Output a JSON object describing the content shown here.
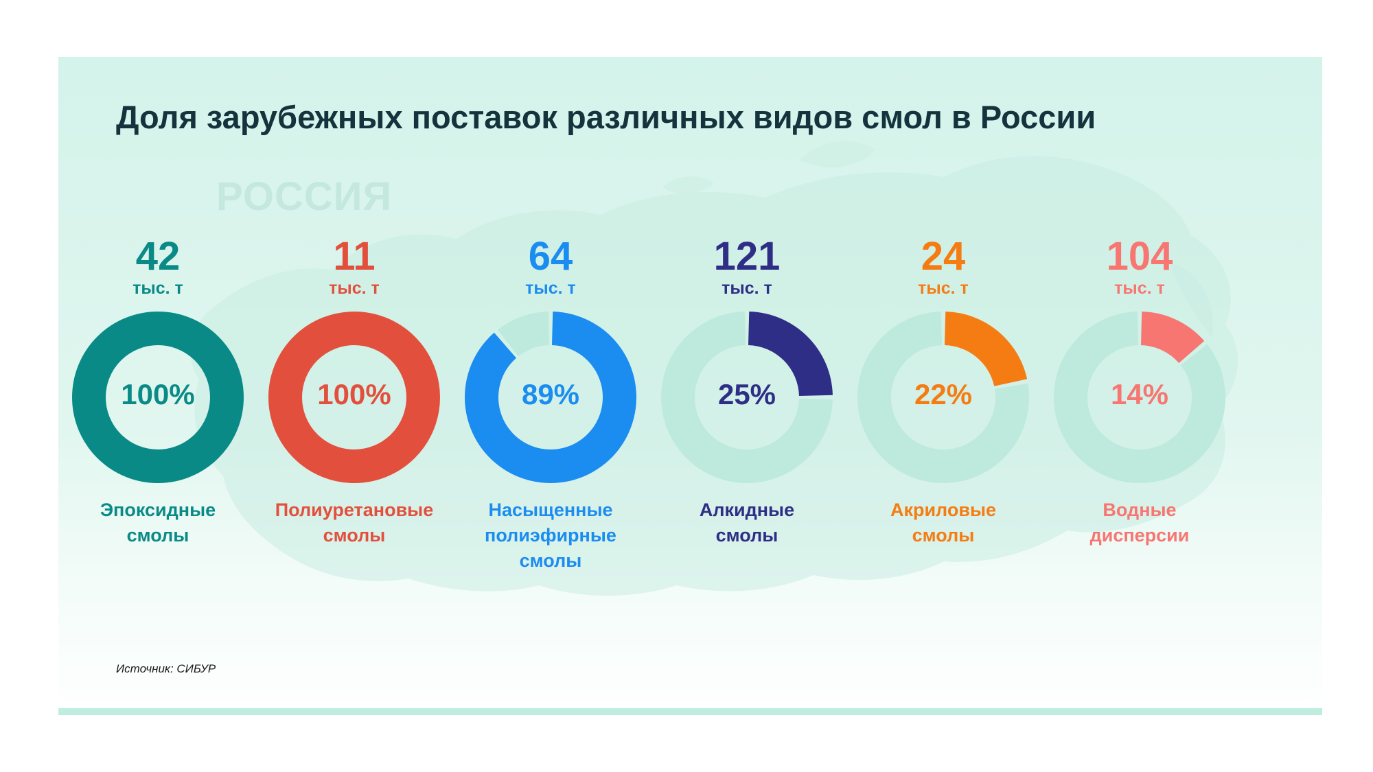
{
  "title": "Доля зарубежных поставок различных видов смол в России",
  "map_label": "РОССИЯ",
  "source": "Источник: СИБУР",
  "chart_data": {
    "type": "donut",
    "title": "Доля зарубежных поставок различных видов смол в России",
    "unit": "тыс. т",
    "track_color": "#bdeadc",
    "items": [
      {
        "label_lines": [
          "Эпоксидные",
          "смолы"
        ],
        "volume": "42",
        "share": 100,
        "share_label": "100%",
        "color": "#0a8a86"
      },
      {
        "label_lines": [
          "Полиуретановые",
          "смолы"
        ],
        "volume": "11",
        "share": 100,
        "share_label": "100%",
        "color": "#e2503d"
      },
      {
        "label_lines": [
          "Насыщенные",
          "полиэфирные",
          "смолы"
        ],
        "volume": "64",
        "share": 89,
        "share_label": "89%",
        "color": "#1b8cf0"
      },
      {
        "label_lines": [
          "Алкидные",
          "смолы"
        ],
        "volume": "121",
        "share": 25,
        "share_label": "25%",
        "color": "#2e2e86"
      },
      {
        "label_lines": [
          "Акриловые",
          "смолы"
        ],
        "volume": "24",
        "share": 22,
        "share_label": "22%",
        "color": "#f57c12"
      },
      {
        "label_lines": [
          "Водные",
          "дисперсии"
        ],
        "volume": "104",
        "share": 14,
        "share_label": "14%",
        "color": "#f77671"
      }
    ]
  }
}
